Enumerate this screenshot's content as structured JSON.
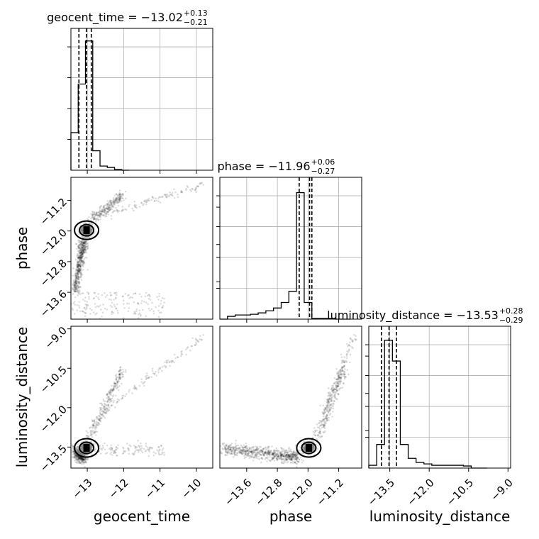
{
  "chart_data": {
    "type": "corner",
    "parameters": [
      "geocent_time",
      "phase",
      "luminosity_distance"
    ],
    "axis_labels": {
      "geocent_time": "geocent_time",
      "phase": "phase",
      "luminosity_distance": "luminosity_distance"
    },
    "ranges": {
      "geocent_time": [
        -13.45,
        -9.55
      ],
      "phase": [
        -14.3,
        -10.6
      ],
      "luminosity_distance": [
        -14.3,
        -8.9
      ]
    },
    "ticks": {
      "geocent_time": {
        "values": [
          -13,
          -12,
          -11,
          -10
        ],
        "labels": [
          "−13",
          "−12",
          "−11",
          "−10"
        ]
      },
      "phase": {
        "values": [
          -13.6,
          -12.8,
          -12.0,
          -11.2
        ],
        "labels": [
          "−13.6",
          "−12.8",
          "−12.0",
          "−11.2"
        ]
      },
      "luminosity_distance": {
        "values": [
          -13.5,
          -12.0,
          -10.5,
          -9.0
        ],
        "labels": [
          "−13.5",
          "−12.0",
          "−10.5",
          "−9.0"
        ]
      }
    },
    "titles": {
      "geocent_time": {
        "text": "geocent_time = −13.02",
        "sup": "+0.13",
        "sub": "−0.21"
      },
      "phase": {
        "text": "phase = −11.96",
        "sup": "+0.06",
        "sub": "−0.27"
      },
      "luminosity_distance": {
        "text": "luminosity_distance = −13.53",
        "sup": "+0.28",
        "sub": "−0.29"
      }
    },
    "histograms": {
      "geocent_time": {
        "bin_edges": [
          -13.45,
          -13.25,
          -13.05,
          -12.85,
          -12.65,
          -12.45,
          -12.25,
          -12.05,
          -11.85
        ],
        "counts": [
          0.27,
          0.62,
          0.93,
          0.14,
          0.03,
          0.02,
          0.005,
          0.0
        ],
        "quantile_lines": [
          -13.23,
          -13.02,
          -12.89
        ]
      },
      "phase": {
        "bin_edges": [
          -14.3,
          -14.1,
          -13.9,
          -13.7,
          -13.5,
          -13.3,
          -13.1,
          -12.9,
          -12.7,
          -12.5,
          -12.3,
          -12.1,
          -11.9,
          -11.7,
          -11.5,
          -11.3,
          -11.1,
          -10.9
        ],
        "counts": [
          0.0,
          0.02,
          0.03,
          0.03,
          0.035,
          0.045,
          0.06,
          0.08,
          0.12,
          0.2,
          0.91,
          0.12,
          0.005,
          0.005,
          0.005,
          0.0,
          0.0
        ],
        "quantile_lines": [
          -12.23,
          -11.96,
          -11.9
        ]
      },
      "luminosity_distance": {
        "bin_edges": [
          -14.3,
          -14.0,
          -13.7,
          -13.4,
          -13.1,
          -12.8,
          -12.5,
          -12.2,
          -11.9,
          -11.6,
          -11.3,
          -11.0,
          -10.7,
          -10.4,
          -10.1,
          -9.8
        ],
        "counts": [
          0.02,
          0.17,
          0.92,
          0.77,
          0.17,
          0.07,
          0.04,
          0.03,
          0.02,
          0.02,
          0.02,
          0.02,
          0.015,
          0.0,
          0.0
        ],
        "quantile_lines": [
          -13.82,
          -13.53,
          -13.25
        ]
      }
    },
    "grid": true
  }
}
